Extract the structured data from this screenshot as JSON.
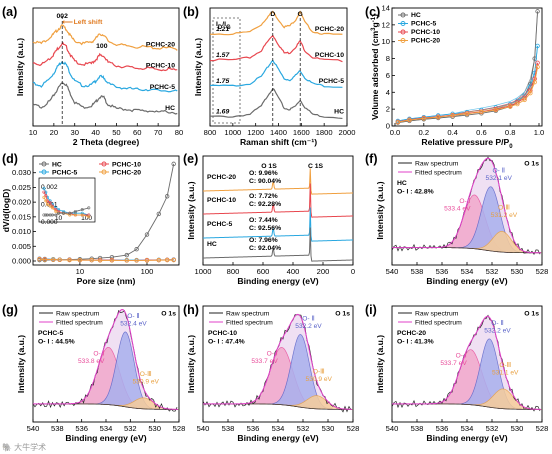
{
  "colors": {
    "HC": "#6b6b6b",
    "PCHC-5": "#2aa8e0",
    "PCHC-10": "#e8474f",
    "PCHC-20": "#f0a040",
    "raw": "#222222",
    "fit": "#e040c8",
    "oII": "#5a63c8",
    "oI": "#e84c9a",
    "oIII": "#e8a040",
    "envelope_fill": "#ecd8f0",
    "oII_fill": "#a9b0ee",
    "oI_fill": "#f2a8cc",
    "oIII_fill": "#f6cd9a"
  },
  "chart_data": [
    {
      "panel": "(a)",
      "type": "line",
      "xlabel": "2 Theta (degree)",
      "ylabel": "Intensity (a.u.)",
      "xlim": [
        10,
        80
      ],
      "xticks": [
        10,
        20,
        30,
        40,
        50,
        60,
        70,
        80
      ],
      "annotations": [
        "002",
        "Left shift",
        "100"
      ],
      "series": [
        {
          "name": "PCHC-20",
          "x": [
            10,
            14,
            18,
            20,
            22,
            24,
            26,
            28,
            30,
            34,
            38,
            40,
            42,
            44,
            46,
            50,
            55,
            60,
            65,
            70,
            75,
            80
          ],
          "y": [
            0.72,
            0.7,
            0.75,
            0.78,
            0.82,
            0.85,
            0.82,
            0.76,
            0.72,
            0.7,
            0.71,
            0.74,
            0.78,
            0.77,
            0.72,
            0.69,
            0.68,
            0.67,
            0.67,
            0.66,
            0.66,
            0.65
          ]
        },
        {
          "name": "PCHC-10",
          "x": [
            10,
            14,
            18,
            20,
            22,
            24,
            26,
            28,
            30,
            34,
            38,
            40,
            42,
            44,
            46,
            50,
            55,
            60,
            65,
            70,
            75,
            80
          ],
          "y": [
            0.54,
            0.52,
            0.57,
            0.61,
            0.66,
            0.7,
            0.67,
            0.6,
            0.55,
            0.52,
            0.53,
            0.56,
            0.6,
            0.59,
            0.54,
            0.51,
            0.5,
            0.49,
            0.49,
            0.48,
            0.48,
            0.47
          ]
        },
        {
          "name": "PCHC-5",
          "x": [
            10,
            14,
            18,
            20,
            22,
            24,
            26,
            28,
            30,
            34,
            38,
            40,
            42,
            44,
            46,
            50,
            55,
            60,
            65,
            70,
            75,
            80
          ],
          "y": [
            0.36,
            0.34,
            0.4,
            0.45,
            0.51,
            0.55,
            0.52,
            0.44,
            0.38,
            0.34,
            0.35,
            0.38,
            0.42,
            0.41,
            0.36,
            0.33,
            0.32,
            0.31,
            0.31,
            0.3,
            0.3,
            0.29
          ]
        },
        {
          "name": "HC",
          "x": [
            10,
            14,
            18,
            20,
            22,
            24,
            26,
            28,
            30,
            34,
            38,
            40,
            42,
            44,
            46,
            50,
            55,
            60,
            65,
            70,
            75,
            80
          ],
          "y": [
            0.18,
            0.16,
            0.21,
            0.26,
            0.32,
            0.37,
            0.35,
            0.27,
            0.2,
            0.16,
            0.17,
            0.2,
            0.25,
            0.24,
            0.18,
            0.15,
            0.14,
            0.13,
            0.13,
            0.12,
            0.12,
            0.11
          ]
        }
      ]
    },
    {
      "panel": "(b)",
      "type": "line",
      "xlabel": "Raman shift (cm⁻¹)",
      "ylabel": "Intensity (a.u.)",
      "xlim": [
        800,
        2000
      ],
      "xticks": [
        800,
        1000,
        1200,
        1400,
        1600,
        1800,
        2000
      ],
      "peaks": [
        "D",
        "G"
      ],
      "ratio_header": "ID/IG",
      "series": [
        {
          "name": "PCHC-20",
          "ratio": "1.21",
          "x": [
            800,
            1000,
            1150,
            1250,
            1300,
            1350,
            1400,
            1450,
            1500,
            1550,
            1590,
            1630,
            1700,
            1800,
            2000
          ],
          "y": [
            0.78,
            0.78,
            0.8,
            0.86,
            0.92,
            0.97,
            0.9,
            0.84,
            0.85,
            0.9,
            0.97,
            0.88,
            0.8,
            0.78,
            0.77
          ]
        },
        {
          "name": "PCHC-10",
          "ratio": "1.57",
          "x": [
            800,
            1000,
            1150,
            1250,
            1300,
            1350,
            1400,
            1450,
            1500,
            1550,
            1590,
            1630,
            1700,
            1800,
            2000
          ],
          "y": [
            0.56,
            0.56,
            0.58,
            0.64,
            0.71,
            0.77,
            0.69,
            0.62,
            0.62,
            0.67,
            0.72,
            0.64,
            0.58,
            0.56,
            0.55
          ]
        },
        {
          "name": "PCHC-5",
          "ratio": "1.75",
          "x": [
            800,
            1000,
            1150,
            1250,
            1300,
            1350,
            1400,
            1450,
            1500,
            1550,
            1590,
            1630,
            1700,
            1800,
            2000
          ],
          "y": [
            0.34,
            0.34,
            0.36,
            0.42,
            0.49,
            0.56,
            0.48,
            0.4,
            0.39,
            0.43,
            0.47,
            0.41,
            0.36,
            0.34,
            0.33
          ]
        },
        {
          "name": "HC",
          "ratio": "1.69",
          "x": [
            800,
            1000,
            1150,
            1250,
            1300,
            1350,
            1400,
            1450,
            1500,
            1550,
            1590,
            1630,
            1700,
            1800,
            2000
          ],
          "y": [
            0.08,
            0.08,
            0.1,
            0.17,
            0.25,
            0.32,
            0.24,
            0.15,
            0.14,
            0.17,
            0.22,
            0.16,
            0.1,
            0.08,
            0.07
          ]
        }
      ]
    },
    {
      "panel": "(c)",
      "type": "scatter",
      "xlabel": "Relative pressure P/P₀",
      "ylabel": "Volume adsorbed (cm³g⁻¹)",
      "xlim": [
        0,
        1.0
      ],
      "ylim": [
        0,
        14
      ],
      "xticks": [
        0.0,
        0.2,
        0.4,
        0.6,
        0.8,
        1.0
      ],
      "yticks": [
        0,
        2,
        4,
        6,
        8,
        10,
        12,
        14
      ],
      "series": [
        {
          "name": "HC",
          "x": [
            0.02,
            0.1,
            0.2,
            0.3,
            0.4,
            0.5,
            0.6,
            0.7,
            0.8,
            0.85,
            0.9,
            0.94,
            0.97,
            0.99
          ],
          "y": [
            0.4,
            0.6,
            0.8,
            0.95,
            1.1,
            1.3,
            1.5,
            1.8,
            2.3,
            2.8,
            3.6,
            5.0,
            8.0,
            13.6
          ]
        },
        {
          "name": "PCHC-5",
          "x": [
            0.02,
            0.1,
            0.2,
            0.3,
            0.4,
            0.5,
            0.6,
            0.7,
            0.8,
            0.85,
            0.9,
            0.94,
            0.97,
            0.99
          ],
          "y": [
            0.6,
            0.85,
            1.05,
            1.25,
            1.45,
            1.65,
            1.9,
            2.2,
            2.6,
            3.0,
            3.6,
            4.6,
            6.3,
            9.5
          ]
        },
        {
          "name": "PCHC-10",
          "x": [
            0.02,
            0.1,
            0.2,
            0.3,
            0.4,
            0.5,
            0.6,
            0.7,
            0.8,
            0.85,
            0.9,
            0.94,
            0.97,
            0.99
          ],
          "y": [
            0.5,
            0.75,
            0.95,
            1.1,
            1.3,
            1.5,
            1.7,
            2.0,
            2.4,
            2.8,
            3.3,
            4.2,
            5.6,
            7.5
          ]
        },
        {
          "name": "PCHC-20",
          "x": [
            0.02,
            0.1,
            0.2,
            0.3,
            0.4,
            0.5,
            0.6,
            0.7,
            0.8,
            0.85,
            0.9,
            0.94,
            0.97,
            0.99
          ],
          "y": [
            0.45,
            0.7,
            0.9,
            1.05,
            1.25,
            1.45,
            1.65,
            1.9,
            2.3,
            2.6,
            3.1,
            3.9,
            5.2,
            7.0
          ]
        }
      ]
    },
    {
      "panel": "(d)",
      "type": "scatter",
      "xlabel": "Pore size (nm)",
      "ylabel": "dV/d(logD)",
      "xscale": "log",
      "xlim": [
        2,
        300
      ],
      "ylim": [
        0,
        0.035
      ],
      "xticks": [
        10,
        100
      ],
      "yticks": [
        "0.000",
        "0.005",
        "0.010",
        "0.015",
        "0.020",
        "0.025",
        "0.030"
      ],
      "inset": {
        "xticks": [
          "10",
          "100"
        ],
        "yticks": [
          "0.002",
          "0.001",
          "0.000"
        ]
      },
      "series": [
        {
          "name": "HC",
          "x": [
            2.5,
            3,
            4,
            5,
            7,
            10,
            15,
            20,
            30,
            50,
            70,
            100,
            150,
            200,
            250
          ],
          "y": [
            0.0003,
            0.0003,
            0.0004,
            0.0004,
            0.0005,
            0.0006,
            0.0008,
            0.001,
            0.0013,
            0.002,
            0.004,
            0.009,
            0.016,
            0.022,
            0.033
          ]
        },
        {
          "name": "PCHC-5",
          "x": [
            2.5,
            3,
            4,
            5,
            7,
            10,
            15,
            20,
            30,
            50,
            70,
            100,
            150,
            200,
            250
          ],
          "y": [
            0.0008,
            0.0007,
            0.0006,
            0.0005,
            0.0004,
            0.0004,
            0.0003,
            0.0003,
            0.0003,
            0.0003,
            0.0003,
            0.0003,
            0.0004,
            0.0004,
            0.0005
          ]
        },
        {
          "name": "PCHC-10",
          "x": [
            2.5,
            3,
            4,
            5,
            7,
            10,
            15,
            20,
            30,
            50,
            70,
            100,
            150,
            200,
            250
          ],
          "y": [
            0.0007,
            0.0006,
            0.0005,
            0.0004,
            0.0004,
            0.0003,
            0.0003,
            0.0003,
            0.0003,
            0.0002,
            0.0002,
            0.0003,
            0.0003,
            0.0004,
            0.0004
          ]
        },
        {
          "name": "PCHC-20",
          "x": [
            2.5,
            3,
            4,
            5,
            7,
            10,
            15,
            20,
            30,
            50,
            70,
            100,
            150,
            200,
            250
          ],
          "y": [
            0.0006,
            0.0005,
            0.0005,
            0.0004,
            0.0003,
            0.0003,
            0.0003,
            0.0002,
            0.0002,
            0.0002,
            0.0002,
            0.0002,
            0.0003,
            0.0003,
            0.0003
          ]
        }
      ]
    },
    {
      "panel": "(e)",
      "type": "line",
      "xlabel": "Binding energy (eV)",
      "ylabel": "Intensity (a.u.)",
      "xlim": [
        1000,
        0
      ],
      "xticks": [
        1000,
        800,
        600,
        400,
        200,
        0
      ],
      "peaks": [
        "O 1S",
        "C 1S"
      ],
      "series": [
        {
          "name": "PCHC-20",
          "O": "O: 9.96%",
          "C": "C: 90.04%"
        },
        {
          "name": "PCHC-10",
          "O": "O: 7.72%",
          "C": "C: 92.28%"
        },
        {
          "name": "PCHC-5",
          "O": "O: 7.44%",
          "C": "C: 92.56%"
        },
        {
          "name": "HC",
          "O": "O: 7.96%",
          "C": "C: 92.04%"
        }
      ]
    },
    {
      "panel": "(f)",
      "type": "area",
      "sample": "HC",
      "ratio": "O- I : 42.8%",
      "title": "O 1s",
      "legend": [
        "Raw spectrum",
        "Fitted spectrum"
      ],
      "xlabel": "Binding energy (eV)",
      "ylabel": "Intensity (a.u.)",
      "xlim": [
        540,
        528
      ],
      "xticks": [
        540,
        538,
        536,
        534,
        532,
        530,
        528
      ],
      "components": [
        {
          "name": "O- Ⅰ",
          "be": 533.4,
          "label": "533.4 eV",
          "amp": 0.52,
          "sigma": 0.85
        },
        {
          "name": "O- Ⅱ",
          "be": 532.1,
          "label": "532.1 eV",
          "amp": 0.62,
          "sigma": 0.75
        },
        {
          "name": "O-Ⅲ",
          "be": 531.2,
          "label": "531.2 eV",
          "amp": 0.2,
          "sigma": 0.75
        }
      ]
    },
    {
      "panel": "(g)",
      "type": "area",
      "sample": "PCHC-5",
      "ratio": "O- I : 44.5%",
      "title": "O 1s",
      "legend": [
        "Raw spectrum",
        "Fitted spectrum"
      ],
      "xlabel": "Binding energy (eV)",
      "ylabel": "Intensity (a.u.)",
      "xlim": [
        540,
        528
      ],
      "xticks": [
        540,
        538,
        536,
        534,
        532,
        530,
        528
      ],
      "components": [
        {
          "name": "O- Ⅰ",
          "be": 533.8,
          "label": "533.8 eV",
          "amp": 0.52,
          "sigma": 0.9
        },
        {
          "name": "O- Ⅱ",
          "be": 532.4,
          "label": "532.4 eV",
          "amp": 0.68,
          "sigma": 0.72
        },
        {
          "name": "O-Ⅲ",
          "be": 530.9,
          "label": "530.9 eV",
          "amp": 0.1,
          "sigma": 0.8
        }
      ]
    },
    {
      "panel": "(h)",
      "type": "area",
      "sample": "PCHC-10",
      "ratio": "O- I : 47.4%",
      "title": "O 1s",
      "legend": [
        "Raw spectrum",
        "Fitted spectrum"
      ],
      "xlabel": "Binding energy (eV)",
      "ylabel": "Intensity (a.u.)",
      "xlim": [
        540,
        528
      ],
      "xticks": [
        540,
        538,
        536,
        534,
        532,
        530,
        528
      ],
      "components": [
        {
          "name": "O- Ⅰ",
          "be": 533.7,
          "label": "533.7 eV",
          "amp": 0.52,
          "sigma": 0.9
        },
        {
          "name": "O- Ⅱ",
          "be": 532.2,
          "label": "532.2 eV",
          "amp": 0.66,
          "sigma": 0.72
        },
        {
          "name": "O-Ⅲ",
          "be": 530.9,
          "label": "530.9 eV",
          "amp": 0.12,
          "sigma": 0.8
        }
      ]
    },
    {
      "panel": "(i)",
      "type": "area",
      "sample": "PCHC-20",
      "ratio": "O- I : 41.3%",
      "title": "O 1s",
      "legend": [
        "Raw spectrum",
        "Fitted spectrum"
      ],
      "xlabel": "Binding energy (eV)",
      "ylabel": "Intensity (a.u.)",
      "xlim": [
        540,
        528
      ],
      "xticks": [
        540,
        538,
        536,
        534,
        532,
        530,
        528
      ],
      "components": [
        {
          "name": "O- Ⅰ",
          "be": 533.7,
          "label": "533.7 eV",
          "amp": 0.5,
          "sigma": 0.9
        },
        {
          "name": "O- Ⅱ",
          "be": 532.2,
          "label": "532.2 eV",
          "amp": 0.62,
          "sigma": 0.72
        },
        {
          "name": "O-Ⅲ",
          "be": 531.1,
          "label": "531.1 eV",
          "amp": 0.18,
          "sigma": 0.8
        }
      ]
    }
  ],
  "watermark": "🐘 大牛学术"
}
